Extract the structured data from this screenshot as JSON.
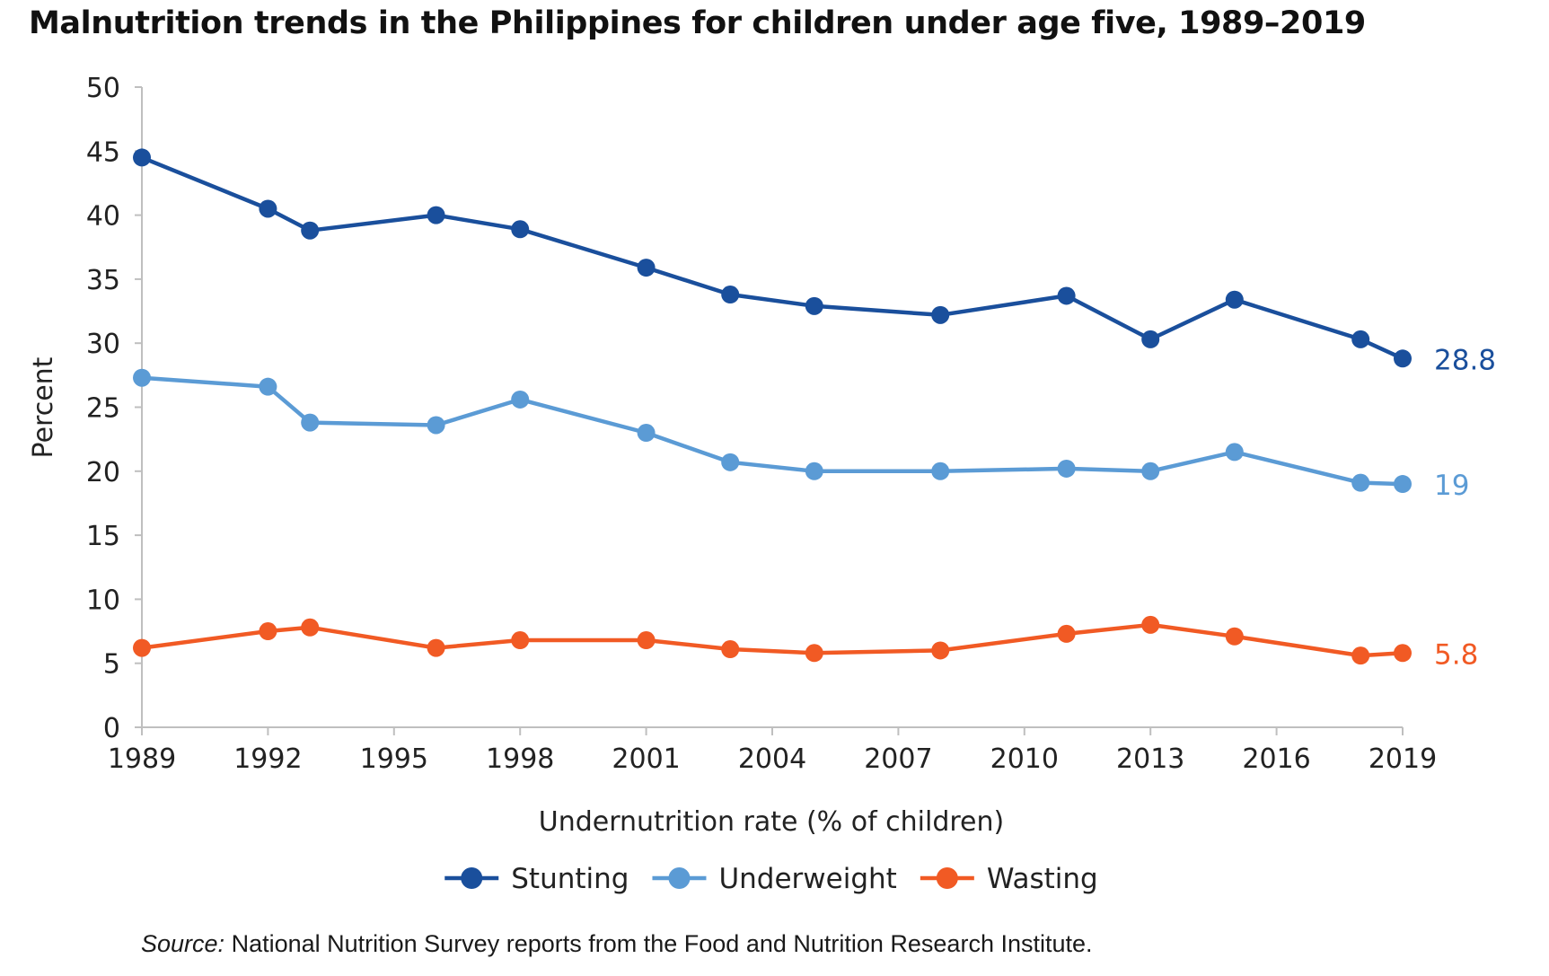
{
  "chart_data": {
    "type": "line",
    "title": "Malnutrition trends in the Philippines for children under age five, 1989–2019",
    "xlabel": "Undernutrition rate (% of children)",
    "ylabel": "Percent",
    "xlim": [
      1989,
      2019
    ],
    "ylim": [
      0,
      50
    ],
    "x_ticks": [
      1989,
      1992,
      1995,
      1998,
      2001,
      2004,
      2007,
      2010,
      2013,
      2016,
      2019
    ],
    "y_ticks": [
      0,
      5,
      10,
      15,
      20,
      25,
      30,
      35,
      40,
      45,
      50
    ],
    "grid": false,
    "legend_position": "bottom",
    "series": [
      {
        "name": "Stunting",
        "color": "#1a4f9c",
        "end_label": "28.8",
        "x": [
          1989,
          1992,
          1993,
          1996,
          1998,
          2001,
          2003,
          2005,
          2008,
          2011,
          2013,
          2015,
          2018,
          2019
        ],
        "values": [
          44.5,
          40.5,
          38.8,
          40.0,
          38.9,
          35.9,
          33.8,
          32.9,
          32.2,
          33.7,
          30.3,
          33.4,
          30.3,
          28.8
        ]
      },
      {
        "name": "Underweight",
        "color": "#5b9bd5",
        "end_label": "19",
        "x": [
          1989,
          1992,
          1993,
          1996,
          1998,
          2001,
          2003,
          2005,
          2008,
          2011,
          2013,
          2015,
          2018,
          2019
        ],
        "values": [
          27.3,
          26.6,
          23.8,
          23.6,
          25.6,
          23.0,
          20.7,
          20.0,
          20.0,
          20.2,
          20.0,
          21.5,
          19.1,
          19.0
        ]
      },
      {
        "name": "Wasting",
        "color": "#f15a24",
        "end_label": "5.8",
        "x": [
          1989,
          1992,
          1993,
          1996,
          1998,
          2001,
          2003,
          2005,
          2008,
          2011,
          2013,
          2015,
          2018,
          2019
        ],
        "values": [
          6.2,
          7.5,
          7.8,
          6.2,
          6.8,
          6.8,
          6.1,
          5.8,
          6.0,
          7.3,
          8.0,
          7.1,
          5.6,
          5.8
        ]
      }
    ]
  },
  "source": {
    "label": "Source:",
    "text": " National Nutrition Survey reports from the Food and Nutrition Research Institute."
  }
}
